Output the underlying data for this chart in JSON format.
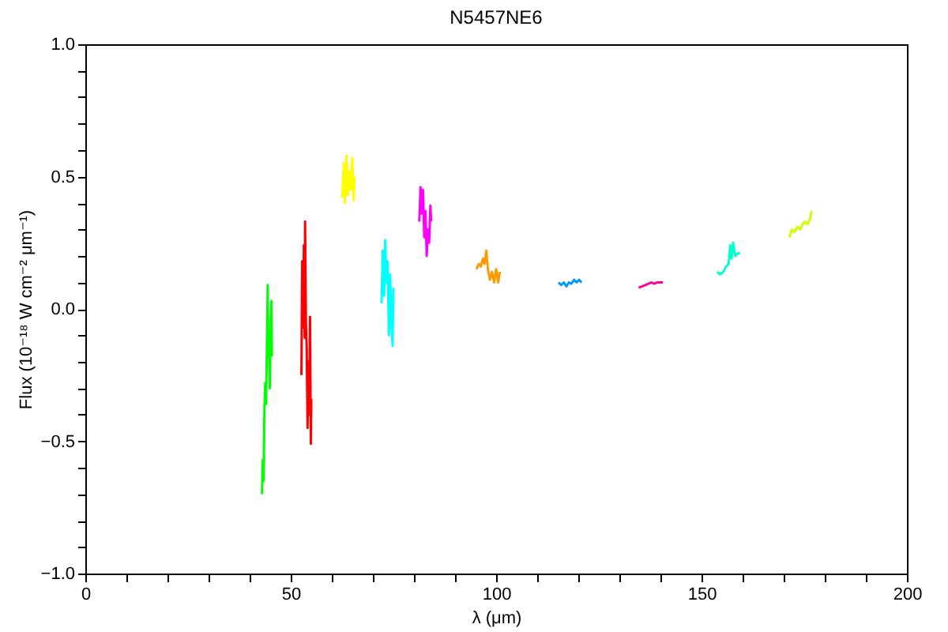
{
  "chart_data": {
    "type": "line",
    "title": "N5457NE6",
    "xlabel": "λ (μm)",
    "ylabel": "Flux (10⁻¹⁸ W cm⁻² μm⁻¹)",
    "xlim": [
      0,
      200
    ],
    "ylim": [
      -1,
      1
    ],
    "xticks": [
      0,
      {
        "value": 10,
        "label": null
      },
      {
        "value": 20,
        "label": null
      },
      {
        "value": 30,
        "label": null
      },
      {
        "value": 40,
        "label": null
      },
      50,
      {
        "value": 60,
        "label": null
      },
      {
        "value": 70,
        "label": null
      },
      {
        "value": 80,
        "label": null
      },
      {
        "value": 90,
        "label": null
      },
      100,
      {
        "value": 110,
        "label": null
      },
      {
        "value": 120,
        "label": null
      },
      {
        "value": 130,
        "label": null
      },
      {
        "value": 140,
        "label": null
      },
      150,
      {
        "value": 160,
        "label": null
      },
      {
        "value": 170,
        "label": null
      },
      {
        "value": 180,
        "label": null
      },
      {
        "value": 190,
        "label": null
      },
      200
    ],
    "yticks": [
      {
        "value": -1,
        "label": "−1.0"
      },
      {
        "value": -0.9,
        "label": null
      },
      {
        "value": -0.8,
        "label": null
      },
      {
        "value": -0.7,
        "label": null
      },
      {
        "value": -0.6,
        "label": null
      },
      {
        "value": -0.5,
        "label": "−0.5"
      },
      {
        "value": -0.4,
        "label": null
      },
      {
        "value": -0.3,
        "label": null
      },
      {
        "value": -0.2,
        "label": null
      },
      {
        "value": -0.1,
        "label": null
      },
      {
        "value": 0,
        "label": "0.0"
      },
      {
        "value": 0.1,
        "label": null
      },
      {
        "value": 0.2,
        "label": null
      },
      {
        "value": 0.3,
        "label": null
      },
      {
        "value": 0.4,
        "label": null
      },
      {
        "value": 0.5,
        "label": "0.5"
      },
      {
        "value": 0.6,
        "label": null
      },
      {
        "value": 0.7,
        "label": null
      },
      {
        "value": 0.8,
        "label": null
      },
      {
        "value": 0.9,
        "label": null
      },
      {
        "value": 1,
        "label": "1.0"
      }
    ],
    "grid": false,
    "legend": false,
    "series": [
      {
        "color": "#00ff00",
        "x": [
          43.0,
          43.2,
          43.4,
          43.6,
          43.8,
          44.0,
          44.2,
          44.4,
          44.5,
          44.7,
          44.9,
          45.1,
          45.3,
          45.4
        ],
        "values": [
          -0.7,
          -0.57,
          -0.65,
          -0.38,
          -0.28,
          -0.36,
          -0.15,
          0.09,
          -0.17,
          -0.1,
          -0.3,
          -0.05,
          0.03,
          -0.18
        ]
      },
      {
        "color": "#ff0000",
        "x": [
          52.6,
          52.8,
          53.0,
          53.2,
          53.4,
          53.5,
          53.7,
          53.9,
          54.1,
          54.3,
          54.5,
          54.7,
          54.9,
          55.0
        ],
        "values": [
          -0.25,
          0.18,
          -0.07,
          0.24,
          -0.11,
          0.33,
          -0.05,
          -0.15,
          -0.45,
          -0.2,
          -0.4,
          -0.03,
          -0.51,
          -0.34
        ]
      },
      {
        "color": "#ffff00",
        "x": [
          62.5,
          62.9,
          63.2,
          63.6,
          63.9,
          64.3,
          64.6,
          65.0,
          65.3,
          65.5
        ],
        "values": [
          0.42,
          0.55,
          0.4,
          0.58,
          0.43,
          0.52,
          0.45,
          0.57,
          0.41,
          0.5
        ]
      },
      {
        "color": "#00ffff",
        "x": [
          72.1,
          72.4,
          72.7,
          73.0,
          73.3,
          73.6,
          73.9,
          74.2,
          74.5,
          74.8,
          75.0
        ],
        "values": [
          0.02,
          0.22,
          0.05,
          0.26,
          0.1,
          0.18,
          -0.1,
          0.13,
          -0.05,
          -0.14,
          0.08
        ]
      },
      {
        "color": "#ff00ff",
        "x": [
          81.3,
          81.6,
          81.9,
          82.2,
          82.5,
          82.8,
          83.1,
          83.4,
          83.7,
          84.0,
          84.2
        ],
        "values": [
          0.33,
          0.46,
          0.36,
          0.45,
          0.27,
          0.37,
          0.2,
          0.3,
          0.25,
          0.39,
          0.33
        ]
      },
      {
        "color": "#ff9900",
        "x": [
          95.2,
          95.8,
          96.3,
          96.8,
          97.2,
          97.6,
          98.0,
          98.5,
          99.0,
          99.5,
          100.0,
          100.5,
          100.9
        ],
        "values": [
          0.15,
          0.17,
          0.16,
          0.19,
          0.17,
          0.22,
          0.15,
          0.11,
          0.14,
          0.1,
          0.15,
          0.1,
          0.14
        ]
      },
      {
        "color": "#0099ff",
        "x": [
          115.2,
          115.8,
          116.5,
          117.1,
          117.7,
          118.3,
          119.0,
          119.6,
          120.2,
          120.8
        ],
        "values": [
          0.1,
          0.09,
          0.1,
          0.085,
          0.1,
          0.095,
          0.11,
          0.1,
          0.11,
          0.1
        ]
      },
      {
        "color": "#ff0099",
        "x": [
          134.7,
          135.5,
          136.3,
          137.1,
          137.8,
          138.5,
          139.2,
          140.0,
          140.6
        ],
        "values": [
          0.08,
          0.085,
          0.09,
          0.095,
          0.1,
          0.095,
          0.1,
          0.1,
          0.1
        ]
      },
      {
        "color": "#00ffcc",
        "x": [
          153.8,
          154.5,
          155.3,
          156.0,
          156.6,
          157.0,
          157.3,
          157.7,
          158.2,
          158.8,
          159.4
        ],
        "values": [
          0.14,
          0.13,
          0.14,
          0.16,
          0.17,
          0.24,
          0.19,
          0.25,
          0.2,
          0.21,
          0.21
        ]
      },
      {
        "color": "#ccff00",
        "x": [
          171.4,
          172.0,
          172.6,
          173.3,
          174.0,
          174.6,
          175.2,
          175.8,
          176.4,
          176.8
        ],
        "values": [
          0.27,
          0.3,
          0.29,
          0.31,
          0.3,
          0.32,
          0.33,
          0.32,
          0.34,
          0.37
        ]
      }
    ]
  }
}
